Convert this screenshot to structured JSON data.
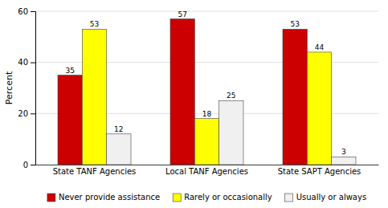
{
  "chart_data": {
    "type": "bar",
    "categories": [
      "State TANF Agencies",
      "Local TANF Agencies",
      "State SAPT Agencies"
    ],
    "series": [
      {
        "name": "Never provide assistance",
        "color": "#CC0000",
        "values": [
          35,
          57,
          53
        ]
      },
      {
        "name": "Rarely or occasionally",
        "color": "#FFFF00",
        "values": [
          53,
          18,
          44
        ]
      },
      {
        "name": "Usually or always",
        "color": "#F0F0F0",
        "values": [
          12,
          25,
          3
        ]
      }
    ],
    "ylabel": "Percent",
    "ylim": [
      0,
      60
    ],
    "yticks": [
      0,
      20,
      40,
      60
    ],
    "grid": true,
    "legend": "bottom",
    "data_labels": true
  }
}
